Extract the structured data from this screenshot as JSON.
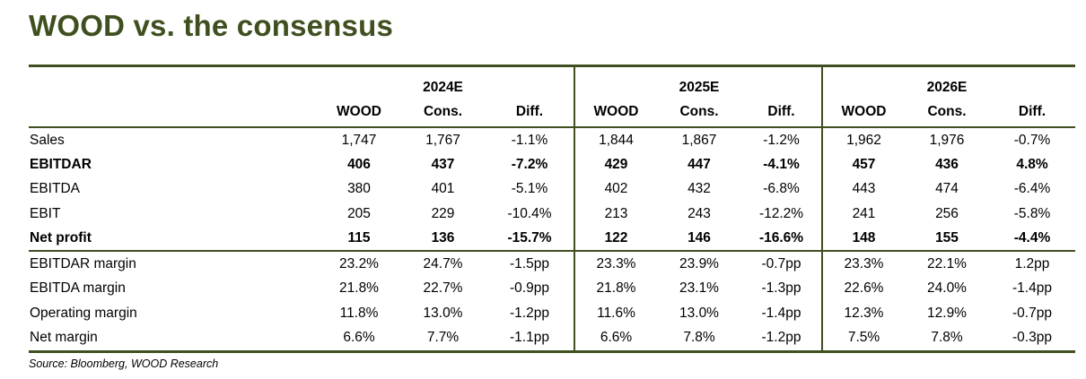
{
  "title": "WOOD vs. the consensus",
  "columns": {
    "years": [
      "2024E",
      "2025E",
      "2026E"
    ],
    "sub": [
      "WOOD",
      "Cons.",
      "Diff."
    ]
  },
  "rows": [
    {
      "label": "Sales",
      "values": [
        "1,747",
        "1,767",
        "-1.1%",
        "1,844",
        "1,867",
        "-1.2%",
        "1,962",
        "1,976",
        "-0.7%"
      ]
    },
    {
      "label": "EBITDAR",
      "values": [
        "406",
        "437",
        "-7.2%",
        "429",
        "447",
        "-4.1%",
        "457",
        "436",
        "4.8%"
      ]
    },
    {
      "label": "EBITDA",
      "values": [
        "380",
        "401",
        "-5.1%",
        "402",
        "432",
        "-6.8%",
        "443",
        "474",
        "-6.4%"
      ]
    },
    {
      "label": "EBIT",
      "values": [
        "205",
        "229",
        "-10.4%",
        "213",
        "243",
        "-12.2%",
        "241",
        "256",
        "-5.8%"
      ]
    },
    {
      "label": "Net profit",
      "values": [
        "115",
        "136",
        "-15.7%",
        "122",
        "146",
        "-16.6%",
        "148",
        "155",
        "-4.4%"
      ]
    },
    {
      "label": "EBITDAR margin",
      "values": [
        "23.2%",
        "24.7%",
        "-1.5pp",
        "23.3%",
        "23.9%",
        "-0.7pp",
        "23.3%",
        "22.1%",
        "1.2pp"
      ]
    },
    {
      "label": "EBITDA margin",
      "values": [
        "21.8%",
        "22.7%",
        "-0.9pp",
        "21.8%",
        "23.1%",
        "-1.3pp",
        "22.6%",
        "24.0%",
        "-1.4pp"
      ]
    },
    {
      "label": "Operating margin",
      "values": [
        "11.8%",
        "13.0%",
        "-1.2pp",
        "11.6%",
        "13.0%",
        "-1.4pp",
        "12.3%",
        "12.9%",
        "-0.7pp"
      ]
    },
    {
      "label": "Net margin",
      "values": [
        "6.6%",
        "7.7%",
        "-1.1pp",
        "6.6%",
        "7.8%",
        "-1.2pp",
        "7.5%",
        "7.8%",
        "-0.3pp"
      ]
    }
  ],
  "bold_rows": [
    1,
    4
  ],
  "source": "Source: Bloomberg, WOOD Research"
}
